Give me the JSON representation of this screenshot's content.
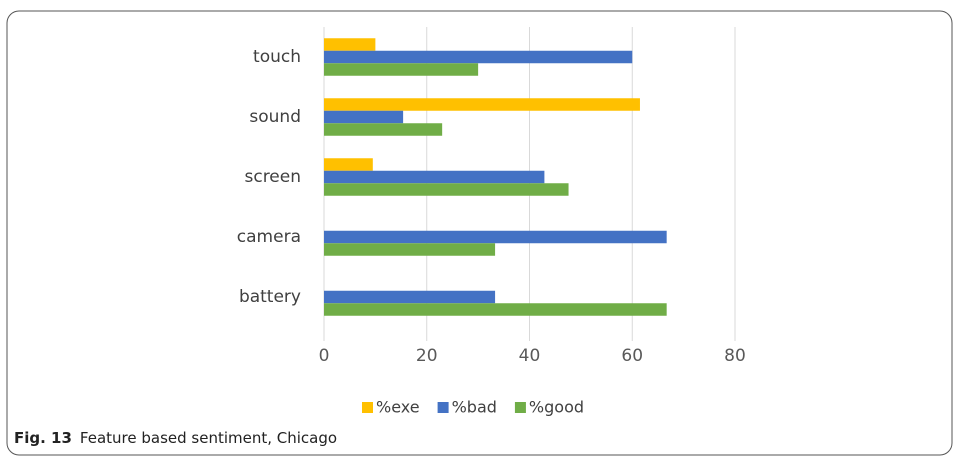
{
  "chart_data": {
    "type": "barh",
    "categories": [
      "touch",
      "sound",
      "screen",
      "camera",
      "battery"
    ],
    "series": [
      {
        "name": "%exe",
        "color": "#ffc000",
        "values": [
          10,
          61.5,
          9.5,
          0,
          0
        ]
      },
      {
        "name": "%bad",
        "color": "#4472c4",
        "values": [
          60,
          15.4,
          42.9,
          66.7,
          33.3
        ]
      },
      {
        "name": "%good",
        "color": "#70ad47",
        "values": [
          30,
          23,
          47.6,
          33.3,
          66.7
        ]
      }
    ],
    "xlim": [
      0,
      80
    ],
    "xticks": [
      0,
      20,
      40,
      60,
      80
    ],
    "grid": true,
    "legend": "bottom",
    "caption": {
      "label": "Fig. 13",
      "text": "Feature based sentiment, Chicago"
    }
  }
}
